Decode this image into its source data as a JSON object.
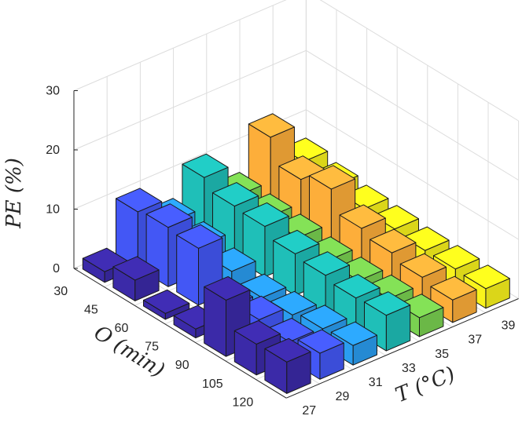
{
  "chart_data": {
    "type": "bar3d",
    "zlabel": "PE (%)",
    "ylabel": "O (min)",
    "xlabel": "T (°C)",
    "z_ticks": [
      0,
      10,
      20,
      30
    ],
    "zlim": [
      0,
      30
    ],
    "y_categories": [
      "30",
      "45",
      "60",
      "75",
      "90",
      "105",
      "120"
    ],
    "x_categories": [
      "27",
      "29",
      "31",
      "33",
      "35",
      "37",
      "39"
    ],
    "colors": [
      "#3b2aa8",
      "#4357f5",
      "#2a9df0",
      "#1fbfb8",
      "#7ad151",
      "#fdae3a",
      "#f9f31c"
    ],
    "grid": true,
    "series": [
      {
        "x": "27",
        "values": [
          1.8,
          3.5,
          1.0,
          1.5,
          9.5,
          5.2,
          5.3
        ]
      },
      {
        "x": "29",
        "values": [
          9.5,
          10.0,
          9.6,
          2.8,
          3.8,
          3.2,
          4.4
        ]
      },
      {
        "x": "31",
        "values": [
          5.4,
          4.6,
          3.3,
          2.0,
          2.2,
          3.0,
          3.3
        ]
      },
      {
        "x": "33",
        "values": [
          10.5,
          8.8,
          8.5,
          7.0,
          6.5,
          5.8,
          6.0
        ]
      },
      {
        "x": "35",
        "values": [
          5.0,
          4.5,
          4.2,
          3.5,
          3.2,
          3.3,
          3.2
        ]
      },
      {
        "x": "37",
        "values": [
          12.5,
          8.5,
          10.0,
          6.5,
          5.5,
          4.5,
          3.8
        ]
      },
      {
        "x": "39",
        "values": [
          6.0,
          5.0,
          4.3,
          4.0,
          3.5,
          3.5,
          3.3
        ]
      }
    ]
  }
}
